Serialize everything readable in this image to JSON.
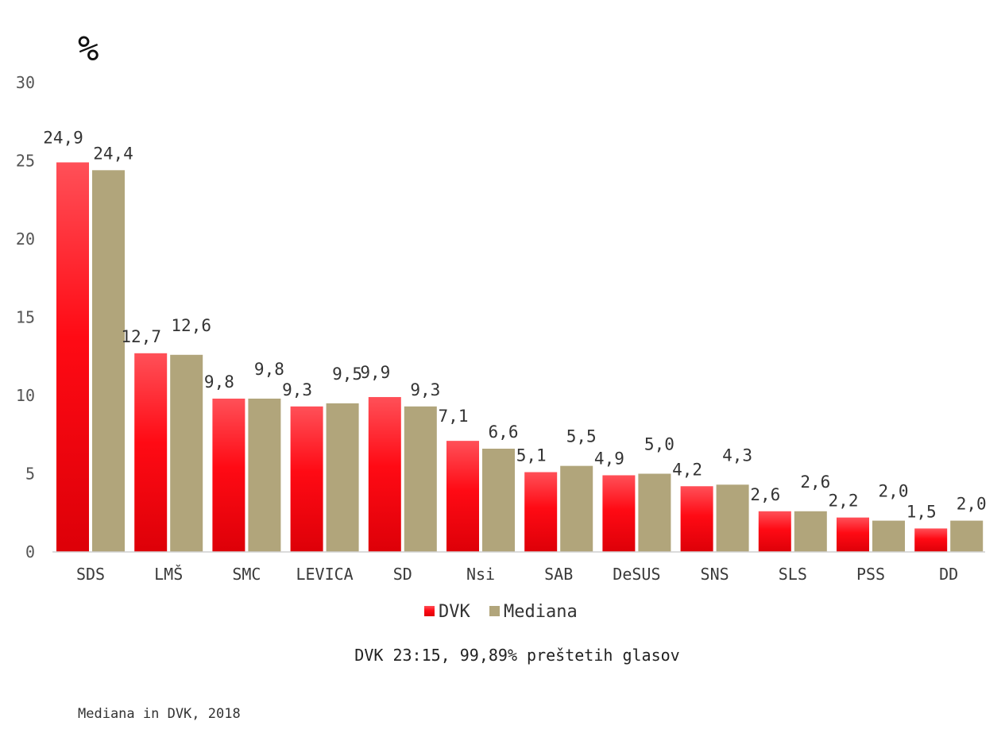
{
  "chart_data": {
    "type": "bar",
    "unit_label": "%",
    "categories": [
      "SDS",
      "LMŠ",
      "SMC",
      "LEVICA",
      "SD",
      "Nsi",
      "SAB",
      "DeSUS",
      "SNS",
      "SLS",
      "PSS",
      "DD"
    ],
    "series": [
      {
        "name": "DVK",
        "color": "#ff0a14",
        "values": [
          24.9,
          12.7,
          9.8,
          9.3,
          9.9,
          7.1,
          5.1,
          4.9,
          4.2,
          2.6,
          2.2,
          1.5
        ],
        "labels": [
          "24,9",
          "12,7",
          "9,8",
          "9,3",
          "9,9",
          "7,1",
          "5,1",
          "4,9",
          "4,2",
          "2,6",
          "2,2",
          "1,5"
        ]
      },
      {
        "name": "Mediana",
        "color": "#b1a57b",
        "values": [
          24.4,
          12.6,
          9.8,
          9.5,
          9.3,
          6.6,
          5.5,
          5.0,
          4.3,
          2.6,
          2.0,
          2.0
        ],
        "labels": [
          "24,4",
          "12,6",
          "9,8",
          "9,5",
          "9,3",
          "6,6",
          "5,5",
          "5,0",
          "4,3",
          "2,6",
          "2,0",
          "2,0"
        ]
      }
    ],
    "ylim": [
      0,
      30
    ],
    "yticks": [
      "0",
      "5",
      "10",
      "15",
      "20",
      "25",
      "30"
    ],
    "grid": false,
    "legend_position": "bottom",
    "annotation": "DVK 23:15, 99,89% preštetih glasov",
    "source": "Mediana in DVK, 2018"
  }
}
